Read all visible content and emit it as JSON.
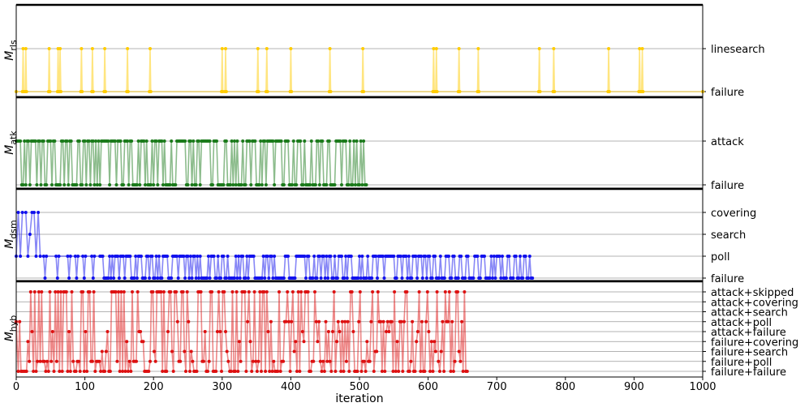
{
  "chart_data": [
    {
      "type": "line",
      "ylabel_base": "M",
      "ylabel_sub": "rls",
      "levels": [
        "failure",
        "linesearch"
      ],
      "color": "#ffcc00",
      "xlim": [
        0,
        1000
      ],
      "end": 1000,
      "events": [
        {
          "x": 10,
          "y": "linesearch"
        },
        {
          "x": 14,
          "y": "linesearch"
        },
        {
          "x": 48,
          "y": "linesearch"
        },
        {
          "x": 61,
          "y": "linesearch"
        },
        {
          "x": 64,
          "y": "linesearch"
        },
        {
          "x": 95,
          "y": "linesearch"
        },
        {
          "x": 111,
          "y": "linesearch"
        },
        {
          "x": 129,
          "y": "linesearch"
        },
        {
          "x": 162,
          "y": "linesearch"
        },
        {
          "x": 195,
          "y": "linesearch"
        },
        {
          "x": 300,
          "y": "linesearch"
        },
        {
          "x": 305,
          "y": "linesearch"
        },
        {
          "x": 352,
          "y": "linesearch"
        },
        {
          "x": 365,
          "y": "linesearch"
        },
        {
          "x": 400,
          "y": "linesearch"
        },
        {
          "x": 457,
          "y": "linesearch"
        },
        {
          "x": 505,
          "y": "linesearch"
        },
        {
          "x": 608,
          "y": "linesearch"
        },
        {
          "x": 612,
          "y": "linesearch"
        },
        {
          "x": 645,
          "y": "linesearch"
        },
        {
          "x": 673,
          "y": "linesearch"
        },
        {
          "x": 762,
          "y": "linesearch"
        },
        {
          "x": 783,
          "y": "linesearch"
        },
        {
          "x": 863,
          "y": "linesearch"
        },
        {
          "x": 908,
          "y": "linesearch"
        },
        {
          "x": 912,
          "y": "linesearch"
        }
      ]
    },
    {
      "type": "line",
      "ylabel_base": "M",
      "ylabel_sub": "atk",
      "levels": [
        "failure",
        "attack"
      ],
      "color": "#1a7a1a",
      "xlim": [
        0,
        1000
      ],
      "end": 510,
      "alternating": {
        "seed": 11,
        "p_high": 0.55,
        "low": "failure",
        "high": "attack"
      }
    },
    {
      "type": "line",
      "ylabel_base": "M",
      "ylabel_sub": "dsm",
      "levels": [
        "failure",
        "poll",
        "search",
        "covering"
      ],
      "color": "#1010ee",
      "xlim": [
        0,
        1000
      ],
      "end": 752,
      "intro": [
        {
          "x": 0,
          "y": "poll"
        },
        {
          "x": 3,
          "y": "covering"
        },
        {
          "x": 6,
          "y": "poll"
        },
        {
          "x": 9,
          "y": "covering"
        },
        {
          "x": 14,
          "y": "covering"
        },
        {
          "x": 17,
          "y": "poll"
        },
        {
          "x": 20,
          "y": "search"
        },
        {
          "x": 23,
          "y": "covering"
        },
        {
          "x": 26,
          "y": "covering"
        },
        {
          "x": 29,
          "y": "poll"
        },
        {
          "x": 32,
          "y": "covering"
        },
        {
          "x": 35,
          "y": "poll"
        },
        {
          "x": 40,
          "y": "poll"
        },
        {
          "x": 42,
          "y": "failure"
        },
        {
          "x": 44,
          "y": "poll"
        },
        {
          "x": 58,
          "y": "poll"
        },
        {
          "x": 60,
          "y": "failure"
        },
        {
          "x": 62,
          "y": "poll"
        },
        {
          "x": 75,
          "y": "poll"
        },
        {
          "x": 77,
          "y": "failure"
        },
        {
          "x": 79,
          "y": "poll"
        },
        {
          "x": 86,
          "y": "poll"
        },
        {
          "x": 88,
          "y": "failure"
        },
        {
          "x": 90,
          "y": "poll"
        },
        {
          "x": 97,
          "y": "poll"
        },
        {
          "x": 99,
          "y": "failure"
        },
        {
          "x": 101,
          "y": "poll"
        },
        {
          "x": 110,
          "y": "poll"
        },
        {
          "x": 112,
          "y": "failure"
        },
        {
          "x": 114,
          "y": "poll"
        },
        {
          "x": 122,
          "y": "poll"
        }
      ],
      "alternating": {
        "seed": 23,
        "start": 124,
        "p_high": 0.5,
        "low": "failure",
        "high": "poll"
      }
    },
    {
      "type": "line",
      "ylabel_base": "M",
      "ylabel_sub": "hyb",
      "levels": [
        "failure+failure",
        "failure+poll",
        "failure+search",
        "failure+covering",
        "attack+failure",
        "attack+poll",
        "attack+search",
        "attack+covering",
        "attack+skipped"
      ],
      "color": "#dd1111",
      "xlim": [
        0,
        1000
      ],
      "end": 658,
      "xlabel": "iteration",
      "xticks": [
        0,
        100,
        200,
        300,
        400,
        500,
        600,
        700,
        800,
        900,
        1000
      ],
      "random_levels": {
        "seed": 37,
        "start": 3
      }
    }
  ]
}
